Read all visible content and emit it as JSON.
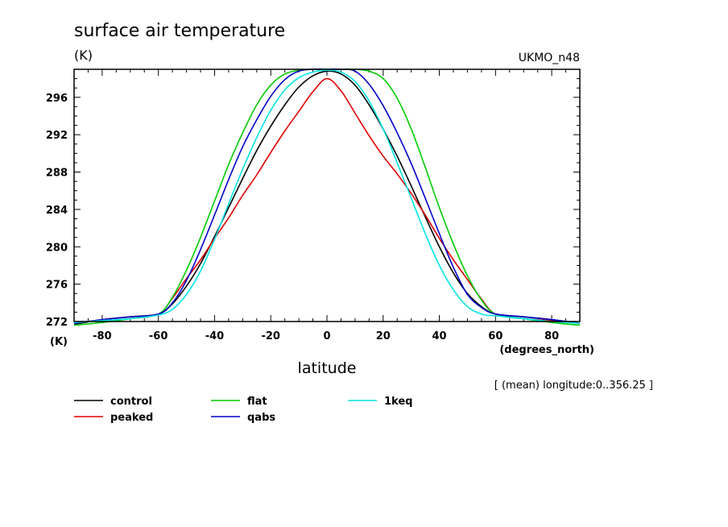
{
  "chart_data": {
    "type": "line",
    "title": "surface air temperature",
    "units_label": "(K)",
    "model_label": "UKMO_n48",
    "xlabel": "latitude",
    "x_units": "(degrees_north)",
    "y_units": "(K)",
    "subtitle": "[ (mean) longitude:0..356.25 ]",
    "xlim": [
      -90,
      90
    ],
    "ylim": [
      272,
      299
    ],
    "xticks": [
      -80,
      -60,
      -40,
      -20,
      0,
      20,
      40,
      60,
      80
    ],
    "xtick_labels": [
      "-80",
      "-60",
      "-40",
      "-20",
      "0",
      "20",
      "40",
      "60",
      "80"
    ],
    "yticks": [
      272,
      276,
      280,
      284,
      288,
      292,
      296
    ],
    "ytick_labels": [
      "272",
      "276",
      "280",
      "284",
      "288",
      "292",
      "296"
    ],
    "series": [
      {
        "name": "control",
        "color": "#000000",
        "x": [
          -90,
          -80,
          -70,
          -60,
          -55,
          -50,
          -45,
          -40,
          -35,
          -30,
          -25,
          -20,
          -15,
          -10,
          -5,
          0,
          5,
          10,
          15,
          20,
          25,
          30,
          35,
          40,
          45,
          50,
          55,
          60,
          70,
          80,
          90
        ],
        "values": [
          271.7,
          272.2,
          272.5,
          272.8,
          273.9,
          275.8,
          278.2,
          281.1,
          284.2,
          287.3,
          290.3,
          292.9,
          295.2,
          297.1,
          298.3,
          298.8,
          298.5,
          297.3,
          295.2,
          292.6,
          289.7,
          286.5,
          283.2,
          280.0,
          277.2,
          275.0,
          273.6,
          272.8,
          272.5,
          272.2,
          271.8
        ]
      },
      {
        "name": "peaked",
        "color": "#e00000",
        "x": [
          -90,
          -80,
          -70,
          -60,
          -55,
          -50,
          -45,
          -40,
          -35,
          -30,
          -25,
          -20,
          -15,
          -10,
          -5,
          0,
          5,
          10,
          15,
          20,
          25,
          30,
          35,
          40,
          45,
          50,
          55,
          60,
          70,
          80,
          90
        ],
        "values": [
          271.8,
          272.2,
          272.5,
          272.8,
          274.5,
          276.6,
          278.6,
          280.9,
          283.1,
          285.5,
          287.7,
          290.1,
          292.4,
          294.5,
          296.6,
          298.0,
          296.7,
          294.3,
          291.9,
          289.7,
          287.8,
          285.7,
          283.4,
          280.9,
          278.6,
          276.5,
          274.4,
          272.8,
          272.3,
          272.1,
          271.8
        ]
      },
      {
        "name": "flat",
        "color": "#00cc00",
        "x": [
          -90,
          -80,
          -70,
          -60,
          -55,
          -50,
          -45,
          -40,
          -35,
          -30,
          -25,
          -20,
          -15,
          -10,
          -5,
          0,
          5,
          10,
          15,
          20,
          25,
          30,
          35,
          40,
          45,
          50,
          55,
          60,
          70,
          80,
          90
        ],
        "values": [
          271.6,
          271.9,
          272.3,
          272.8,
          274.6,
          277.5,
          281.0,
          284.9,
          288.8,
          292.2,
          295.2,
          297.3,
          298.5,
          298.9,
          299.0,
          299.0,
          299.0,
          299.0,
          298.8,
          298.0,
          295.9,
          292.6,
          288.5,
          284.2,
          280.3,
          276.9,
          274.3,
          272.8,
          272.3,
          271.9,
          271.6
        ]
      },
      {
        "name": "qabs",
        "color": "#0000cc",
        "x": [
          -90,
          -80,
          -70,
          -60,
          -55,
          -50,
          -45,
          -40,
          -35,
          -30,
          -25,
          -20,
          -15,
          -10,
          -5,
          0,
          5,
          10,
          15,
          20,
          25,
          30,
          35,
          40,
          45,
          50,
          55,
          60,
          70,
          80,
          90
        ],
        "values": [
          271.8,
          272.2,
          272.5,
          272.8,
          274.0,
          276.4,
          279.7,
          283.4,
          287.2,
          290.7,
          293.6,
          296.1,
          297.9,
          298.8,
          299.0,
          299.0,
          299.0,
          298.8,
          297.4,
          295.1,
          292.2,
          288.9,
          285.2,
          281.4,
          277.8,
          274.9,
          273.5,
          272.8,
          272.5,
          272.2,
          271.8
        ]
      },
      {
        "name": "1keq",
        "color": "#00e5e5",
        "x": [
          -90,
          -80,
          -70,
          -60,
          -55,
          -50,
          -45,
          -40,
          -35,
          -30,
          -25,
          -20,
          -15,
          -10,
          -5,
          0,
          5,
          10,
          15,
          20,
          25,
          30,
          35,
          40,
          45,
          50,
          55,
          60,
          70,
          80,
          90
        ],
        "values": [
          271.9,
          272.1,
          272.3,
          272.7,
          273.3,
          274.9,
          277.4,
          280.8,
          284.6,
          288.3,
          291.7,
          294.6,
          296.8,
          298.1,
          298.7,
          298.9,
          298.7,
          297.7,
          295.6,
          292.6,
          289.0,
          285.2,
          281.4,
          278.0,
          275.4,
          273.6,
          272.8,
          272.6,
          272.3,
          272.0,
          271.8
        ]
      }
    ]
  }
}
